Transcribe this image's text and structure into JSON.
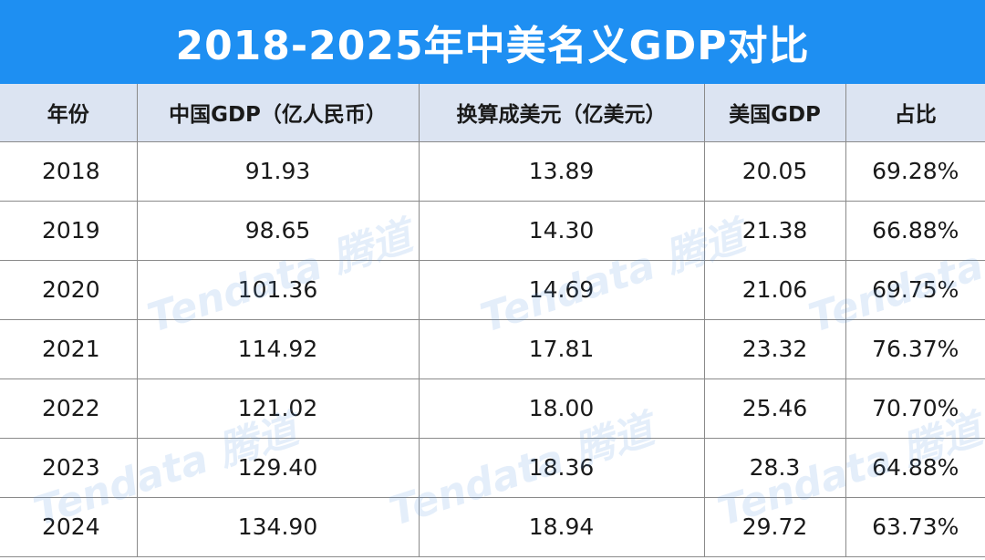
{
  "title": "2018-2025年中美名义GDP对比",
  "columns": [
    "年份",
    "中国GDP（亿人民币）",
    "换算成美元（亿美元）",
    "美国GDP",
    "占比"
  ],
  "rows": [
    [
      "2018",
      "91.93",
      "13.89",
      "20.05",
      "69.28%"
    ],
    [
      "2019",
      "98.65",
      "14.30",
      "21.38",
      "66.88%"
    ],
    [
      "2020",
      "101.36",
      "14.69",
      "21.06",
      "69.75%"
    ],
    [
      "2021",
      "114.92",
      "17.81",
      "23.32",
      "76.37%"
    ],
    [
      "2022",
      "121.02",
      "18.00",
      "25.46",
      "70.70%"
    ],
    [
      "2023",
      "129.40",
      "18.36",
      "28.3",
      "64.88%"
    ],
    [
      "2024",
      "134.90",
      "18.94",
      "29.72",
      "63.73%"
    ]
  ],
  "watermark": "Tendata 腾道",
  "colors": {
    "title_bar": "#1e8ff2",
    "title_text": "#ffffff",
    "header_bg": "#dce4f2",
    "grid": "#8a8a8a",
    "watermark": "#5a96e1"
  }
}
